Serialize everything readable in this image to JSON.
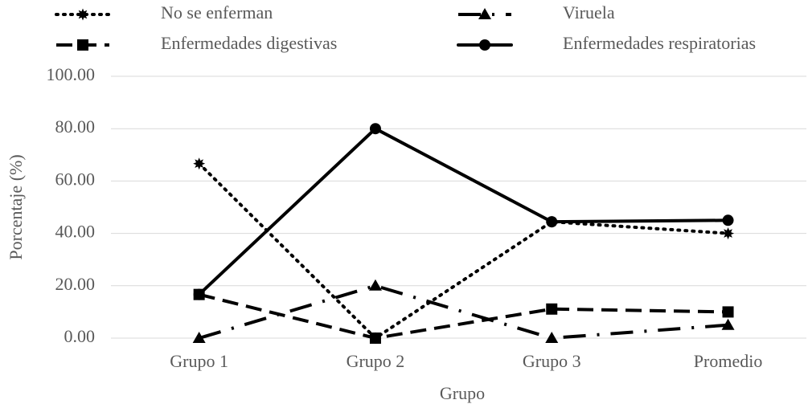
{
  "chart_data": {
    "type": "line",
    "x_label": "Grupo",
    "y_label": "Porcentaje (%)",
    "categories": [
      "Grupo 1",
      "Grupo 2",
      "Grupo 3",
      "Promedio"
    ],
    "series": [
      {
        "name": "No se enferman",
        "color": "#000000",
        "line_style": "dotted",
        "marker": "star",
        "values": [
          66.67,
          0,
          44.44,
          40
        ]
      },
      {
        "name": "Viruela",
        "color": "#000000",
        "line_style": "dashdot",
        "marker": "triangle",
        "values": [
          0,
          20,
          0,
          5
        ]
      },
      {
        "name": "Enfermedades digestivas",
        "color": "#000000",
        "line_style": "dashed",
        "marker": "square",
        "values": [
          16.67,
          0,
          11.11,
          10
        ]
      },
      {
        "name": "Enfermedades respiratorias",
        "color": "#000000",
        "line_style": "solid",
        "marker": "circle",
        "values": [
          16.67,
          80,
          44.44,
          45
        ]
      }
    ],
    "ylim": [
      0,
      100
    ],
    "yticks": [
      {
        "value": 0,
        "label": "0.00"
      },
      {
        "value": 20,
        "label": "20.00"
      },
      {
        "value": 40,
        "label": "40.00"
      },
      {
        "value": 60,
        "label": "60.00"
      },
      {
        "value": 80,
        "label": "80.00"
      },
      {
        "value": 100,
        "label": "100.00"
      }
    ],
    "grid": true,
    "legend": "top"
  }
}
